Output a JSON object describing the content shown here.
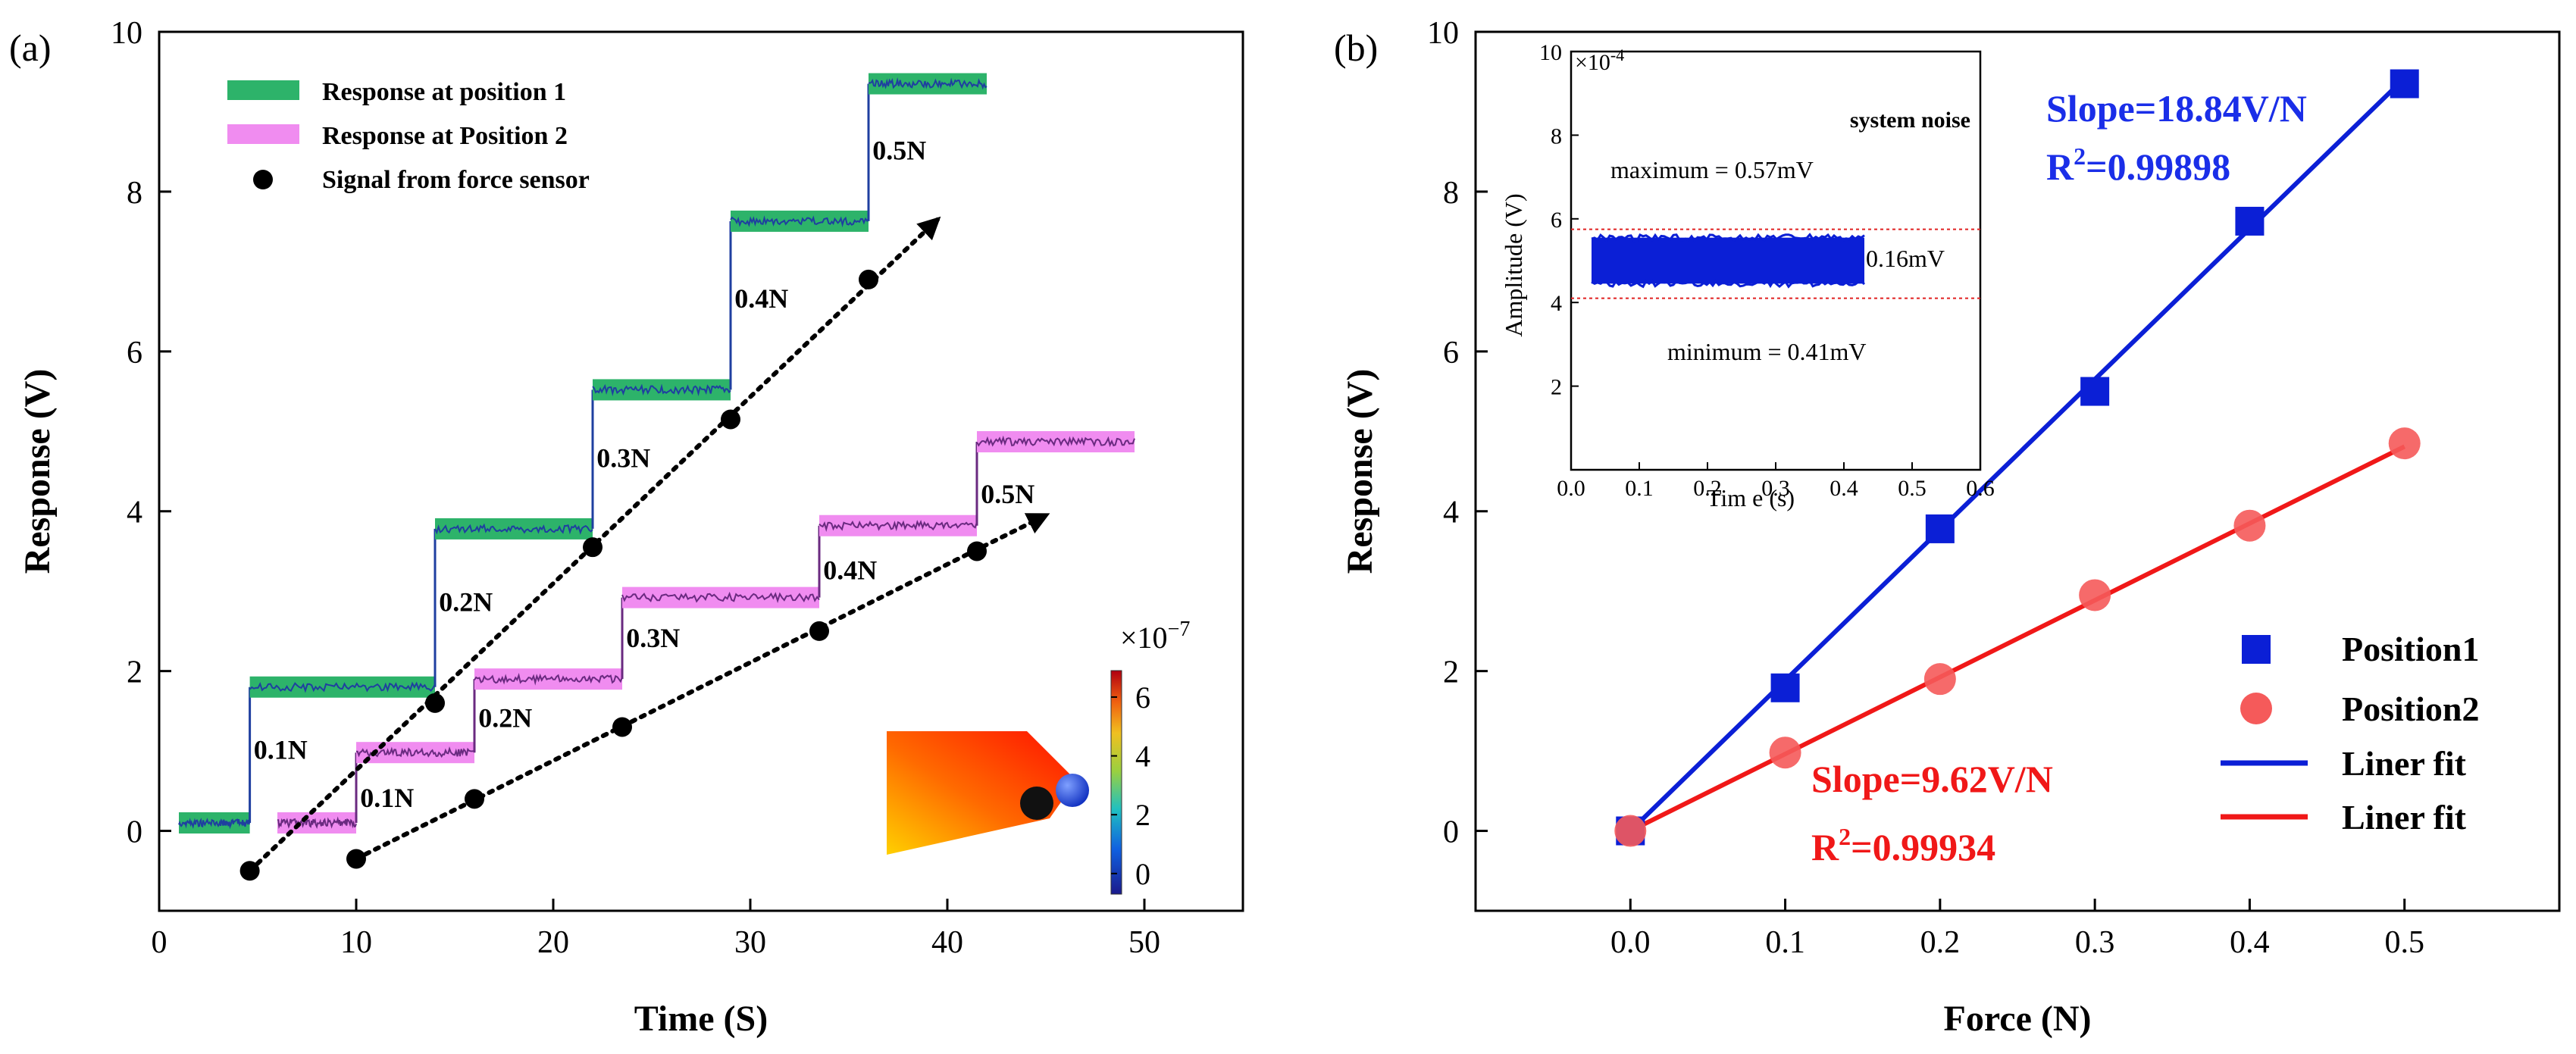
{
  "chart_data": [
    {
      "type": "line",
      "panel_label": "(a)",
      "xlabel": "Time (S)",
      "ylabel": "Response (V)",
      "xlim": [
        0,
        55
      ],
      "ylim": [
        -1,
        10
      ],
      "xticks": [
        0,
        10,
        20,
        30,
        40,
        50
      ],
      "yticks": [
        0,
        2,
        4,
        6,
        8,
        10
      ],
      "legend": {
        "placement": "top-left",
        "entries": [
          "Response at position 1",
          "Response at Position 2",
          "Signal from force sensor"
        ]
      },
      "series": [
        {
          "name": "Response at position 1",
          "color": "#1a9850",
          "steps": [
            [
              1,
              0.1
            ],
            [
              4.6,
              1.8
            ],
            [
              14,
              3.78
            ],
            [
              22,
              5.52
            ],
            [
              29,
              7.63
            ],
            [
              36,
              9.35
            ],
            [
              42,
              9.35
            ]
          ]
        },
        {
          "name": "Response at Position 2",
          "color": "#ee82ee",
          "steps": [
            [
              6,
              0.1
            ],
            [
              10,
              0.98
            ],
            [
              16,
              1.9
            ],
            [
              23.5,
              2.92
            ],
            [
              33.5,
              3.82
            ],
            [
              41.5,
              4.87
            ],
            [
              49.5,
              4.87
            ]
          ]
        },
        {
          "name": "Signal from force sensor",
          "color": "#000000",
          "line1_points": [
            [
              4.6,
              -0.5
            ],
            [
              14,
              1.6
            ],
            [
              22,
              3.55
            ],
            [
              29,
              5.15
            ],
            [
              36,
              6.9
            ]
          ],
          "line1_arrow_end": [
            39.5,
            7.65
          ],
          "line2_points": [
            [
              10,
              -0.35
            ],
            [
              16,
              0.4
            ],
            [
              23.5,
              1.3
            ],
            [
              33.5,
              2.5
            ],
            [
              41.5,
              3.5
            ]
          ],
          "line2_arrow_end": [
            45,
            3.95
          ]
        }
      ],
      "annotations": [
        {
          "text": "0.1N",
          "x": 4.8,
          "y": 0.9
        },
        {
          "text": "0.2N",
          "x": 14.2,
          "y": 2.75
        },
        {
          "text": "0.3N",
          "x": 22.2,
          "y": 4.55
        },
        {
          "text": "0.4N",
          "x": 29.2,
          "y": 6.55
        },
        {
          "text": "0.5N",
          "x": 36.2,
          "y": 8.4
        },
        {
          "text": "0.1N",
          "x": 10.2,
          "y": 0.3
        },
        {
          "text": "0.2N",
          "x": 16.2,
          "y": 1.3
        },
        {
          "text": "0.3N",
          "x": 23.7,
          "y": 2.3
        },
        {
          "text": "0.4N",
          "x": 33.7,
          "y": 3.15
        },
        {
          "text": "0.5N",
          "x": 41.7,
          "y": 4.1
        }
      ],
      "colorbar": {
        "exponent_label": "×10",
        "exponent_power": "−7",
        "ticks": [
          6,
          4,
          2,
          0
        ],
        "range": [
          -0.7,
          6.9
        ]
      }
    },
    {
      "type": "scatter",
      "panel_label": "(b)",
      "xlabel": "Force (N)",
      "ylabel": "Response (V)",
      "xlim": [
        -0.1,
        0.6
      ],
      "ylim": [
        -1,
        10
      ],
      "xticks": [
        0.0,
        0.1,
        0.2,
        0.3,
        0.4,
        0.5
      ],
      "yticks": [
        0,
        2,
        4,
        6,
        8,
        10
      ],
      "legend": {
        "placement": "bottom-right",
        "entries": [
          "Position1",
          "Position2",
          "Liner fit",
          "Liner fit"
        ]
      },
      "series": [
        {
          "name": "Position1",
          "color": "#0b1fd6",
          "x": [
            0.0,
            0.1,
            0.2,
            0.3,
            0.4,
            0.5
          ],
          "y": [
            0.0,
            1.79,
            3.78,
            5.5,
            7.63,
            9.35
          ]
        },
        {
          "name": "Position2",
          "color": "#f55a5a",
          "x": [
            0.0,
            0.1,
            0.2,
            0.3,
            0.4,
            0.5
          ],
          "y": [
            0.0,
            0.98,
            1.9,
            2.95,
            3.82,
            4.85
          ]
        }
      ],
      "fits": [
        {
          "name": "Liner fit",
          "color": "#0b1fd6",
          "slope": 18.84,
          "intercept": 0.0,
          "x_range": [
            0,
            0.5
          ]
        },
        {
          "name": "Liner fit",
          "color": "#f01818",
          "slope": 9.62,
          "intercept": 0.0,
          "x_range": [
            0,
            0.5
          ]
        }
      ],
      "fit_labels": [
        {
          "slope_text": "Slope=18.84V/N",
          "r2_prefix": "R",
          "r2_sup": "2",
          "r2_value": "=0.99898",
          "color": "#1a2ee8"
        },
        {
          "slope_text": "Slope=9.62V/N",
          "r2_prefix": "R",
          "r2_sup": "2",
          "r2_value": "=0.99934",
          "color": "#f01818"
        }
      ],
      "inset": {
        "xlabel": "Tim e (s)",
        "ylabel": "Amplitude (V)",
        "xlim": [
          0,
          0.6
        ],
        "ylim": [
          0,
          10
        ],
        "xticks": [
          0.0,
          0.1,
          0.2,
          0.3,
          0.4,
          0.5,
          0.6
        ],
        "yticks": [
          2,
          4,
          6,
          8,
          10
        ],
        "y_exponent_label": "×10",
        "y_exponent_power": "-4",
        "noise_band": {
          "x_range": [
            0.03,
            0.43
          ],
          "y_range": [
            4.45,
            5.55
          ],
          "color": "#0b1fd6"
        },
        "ref_lines": [
          5.75,
          4.1
        ],
        "title": "system noise",
        "max_text": "maximum = 0.57mV",
        "min_text": "minimum = 0.41mV",
        "band_text": "0.16mV"
      }
    }
  ]
}
